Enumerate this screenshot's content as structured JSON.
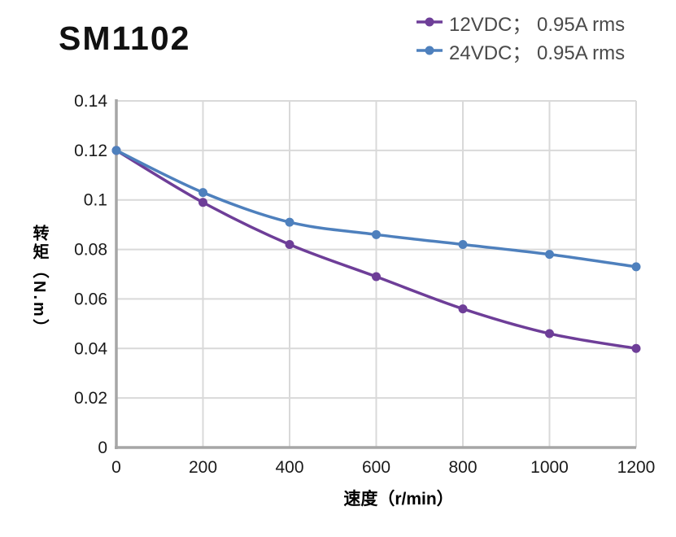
{
  "page": {
    "title": "SM1102"
  },
  "chart_data": {
    "type": "line",
    "title": "SM1102",
    "x": [
      0,
      200,
      400,
      600,
      800,
      1000,
      1200
    ],
    "series": [
      {
        "name": "12VDC； 0.95A rms",
        "color": "#6E3E98",
        "values": [
          0.12,
          0.099,
          0.082,
          0.069,
          0.056,
          0.046,
          0.04
        ]
      },
      {
        "name": "24VDC； 0.95A rms",
        "color": "#4E80BD",
        "values": [
          0.12,
          0.103,
          0.091,
          0.086,
          0.082,
          0.078,
          0.073
        ]
      }
    ],
    "xlabel": "速度（r/min）",
    "ylabel": "转矩（N.m）",
    "xlim": [
      0,
      1200
    ],
    "ylim": [
      0,
      0.14
    ],
    "x_ticks": {
      "values": [
        0,
        200,
        400,
        600,
        800,
        1000,
        1200
      ],
      "labels": [
        "0",
        "200",
        "400",
        "600",
        "800",
        "1000",
        "1200"
      ]
    },
    "y_ticks": {
      "values": [
        0,
        0.02,
        0.04,
        0.06,
        0.08,
        0.1,
        0.12,
        0.14
      ],
      "labels": [
        "0",
        "0.02",
        "0.04",
        "0.06",
        "0.08",
        "0.1",
        "0.12",
        "0.14"
      ]
    },
    "grid": true,
    "legend_position": "top-right",
    "grid_color": "#D9D9D9",
    "axis_color": "#A6A6A6",
    "line_width": 3.5,
    "marker_radius": 5.5
  }
}
